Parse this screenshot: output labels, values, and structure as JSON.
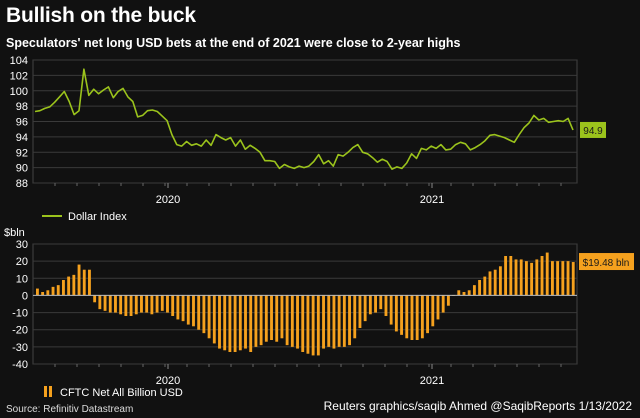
{
  "title": "Bullish on the buck",
  "subtitle": "Speculators' net long USD bets at the end of 2021 were close to 2-year highs",
  "source": "Source: Refinitiv Datastream",
  "credit": "Reuters graphics/saqib Ahmed @SaqibReports 1/13/2022",
  "colors": {
    "background": "#111111",
    "dollar_line": "#9bc31c",
    "bars": "#f5a11e",
    "grid": "#3a3a3a",
    "axis_text": "#ffffff"
  },
  "chart_data": [
    {
      "type": "line",
      "title": "",
      "ylabel": "",
      "ylim": [
        88,
        104
      ],
      "yticks": [
        88,
        90,
        92,
        94,
        96,
        98,
        100,
        102,
        104
      ],
      "x_tick_labels": [
        "2020",
        "2021"
      ],
      "grid": true,
      "series": [
        {
          "name": "Dollar Index",
          "end_label": "94.9",
          "values": [
            97.3,
            97.4,
            97.7,
            97.9,
            98.5,
            99.2,
            99.9,
            98.6,
            96.9,
            97.4,
            102.8,
            99.4,
            100.2,
            99.6,
            100.1,
            100.5,
            99.1,
            99.9,
            100.3,
            99.2,
            98.6,
            96.6,
            96.8,
            97.4,
            97.5,
            97.3,
            96.7,
            96.1,
            94.3,
            93.0,
            92.8,
            93.4,
            92.9,
            93.1,
            92.8,
            93.6,
            92.9,
            94.3,
            93.9,
            93.6,
            93.9,
            92.8,
            93.6,
            92.4,
            92.9,
            92.5,
            92.0,
            90.9,
            90.9,
            90.8,
            89.9,
            90.4,
            90.1,
            89.9,
            90.2,
            90.0,
            90.2,
            90.8,
            91.7,
            90.5,
            90.9,
            90.2,
            91.7,
            91.5,
            92.0,
            92.6,
            93.0,
            92.0,
            91.8,
            91.3,
            90.7,
            91.1,
            90.8,
            89.8,
            90.1,
            89.9,
            90.6,
            91.8,
            91.2,
            92.5,
            92.3,
            92.8,
            92.5,
            93.0,
            92.3,
            92.4,
            93.0,
            93.3,
            93.1,
            92.3,
            92.6,
            93.0,
            93.5,
            94.2,
            94.3,
            94.1,
            93.9,
            93.6,
            93.3,
            94.3,
            95.2,
            95.8,
            96.8,
            96.2,
            96.4,
            95.9,
            96.0,
            96.1,
            96.0,
            96.4,
            94.9
          ]
        }
      ]
    },
    {
      "type": "bar",
      "title": "",
      "ylabel": "$bln",
      "ylim": [
        -40,
        30
      ],
      "yticks": [
        -40,
        -30,
        -20,
        -10,
        0,
        10,
        20,
        30
      ],
      "x_tick_labels": [
        "2020",
        "2021"
      ],
      "grid": true,
      "series": [
        {
          "name": "CFTC Net All Billion USD",
          "end_label": "$19.48 bln",
          "values": [
            4,
            2,
            3,
            5,
            6,
            9,
            11,
            12,
            18,
            15,
            15,
            -4,
            -8,
            -9,
            -10,
            -10,
            -11,
            -12,
            -12,
            -11,
            -10,
            -10,
            -11,
            -10,
            -9,
            -10,
            -12,
            -14,
            -15,
            -17,
            -18,
            -20,
            -22,
            -25,
            -28,
            -31,
            -32,
            -33,
            -33,
            -32,
            -31,
            -33,
            -30,
            -29,
            -27,
            -26,
            -27,
            -25,
            -29,
            -30,
            -31,
            -33,
            -34,
            -35,
            -35,
            -31,
            -30,
            -31,
            -30,
            -30,
            -29,
            -25,
            -19,
            -15,
            -11,
            -10,
            -8,
            -12,
            -17,
            -21,
            -23,
            -25,
            -26,
            -26,
            -25,
            -22,
            -18,
            -14,
            -10,
            -6,
            0,
            3,
            2,
            3,
            6,
            9,
            11,
            14,
            15,
            17,
            23,
            23,
            21,
            21,
            20,
            19,
            21,
            23,
            25,
            20,
            20,
            20,
            20,
            19.48
          ]
        }
      ]
    }
  ]
}
